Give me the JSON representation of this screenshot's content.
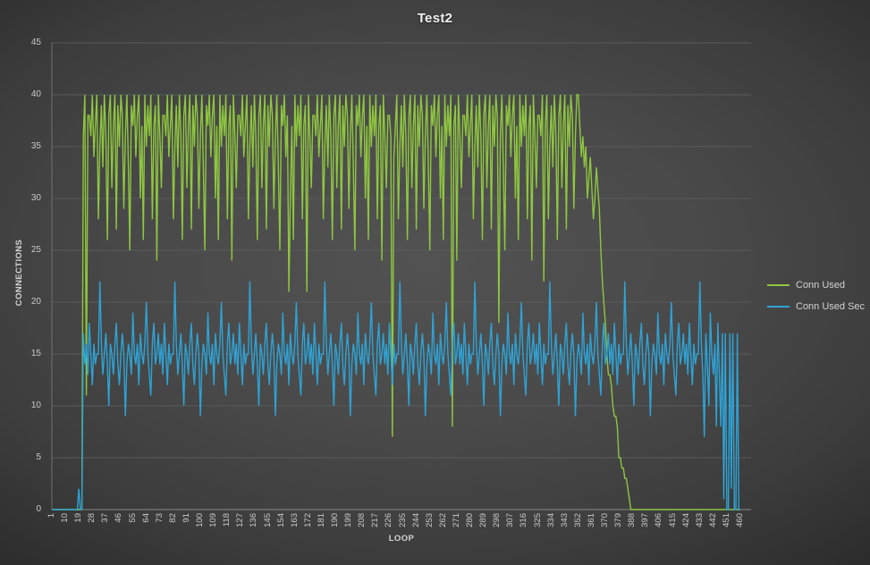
{
  "colors": {
    "background_center": "#525252",
    "background_corner": "#2b2b2b",
    "gridline": "#5a5a5a",
    "x_axis_line": "#888888",
    "y_axis_line": "#6f6f6f",
    "tick_text": "#c9c9c9",
    "axis_title_text": "#d4d4d4",
    "title_text": "#f0f0f0",
    "legend_text": "#d2d2d2",
    "series_green": "#8fc640",
    "series_blue": "#2ea3d6"
  },
  "chart_data": {
    "type": "line",
    "title": "Test2",
    "xlabel": "LOOP",
    "ylabel": "CONNECTIONS",
    "ylim": [
      0,
      45
    ],
    "xlim": [
      1,
      467
    ],
    "grid": true,
    "legend_position": "right-middle",
    "x_start": 1,
    "x_step": 1,
    "yticks": [
      0,
      5,
      10,
      15,
      20,
      25,
      30,
      35,
      40,
      45
    ],
    "xticks": [
      1,
      10,
      19,
      28,
      37,
      46,
      55,
      64,
      73,
      82,
      91,
      100,
      109,
      118,
      127,
      136,
      145,
      154,
      163,
      172,
      181,
      190,
      199,
      208,
      217,
      226,
      235,
      244,
      253,
      262,
      271,
      280,
      289,
      298,
      307,
      316,
      325,
      334,
      343,
      352,
      361,
      370,
      379,
      388,
      397,
      406,
      415,
      424,
      433,
      442,
      451,
      460
    ],
    "series": [
      {
        "name": "Conn Used",
        "color": "#8fc640",
        "values": [
          0,
          0,
          0,
          0,
          0,
          0,
          0,
          0,
          0,
          0,
          0,
          0,
          0,
          0,
          0,
          0,
          0,
          0,
          0,
          0,
          0,
          36,
          40,
          11,
          38,
          38,
          36,
          40,
          34,
          37,
          40,
          28,
          35,
          39,
          33,
          40,
          36,
          26,
          38,
          40,
          31,
          37,
          40,
          27,
          39,
          35,
          40,
          38,
          29,
          36,
          40,
          33,
          25,
          39,
          37,
          40,
          34,
          38,
          40,
          30,
          37,
          26,
          40,
          35,
          39,
          36,
          40,
          28,
          37,
          39,
          24,
          40,
          36,
          31,
          38,
          38,
          36,
          40,
          34,
          37,
          40,
          28,
          35,
          39,
          33,
          40,
          36,
          26,
          38,
          40,
          31,
          37,
          40,
          27,
          39,
          35,
          40,
          38,
          29,
          36,
          40,
          33,
          25,
          39,
          37,
          40,
          34,
          38,
          40,
          30,
          37,
          26,
          40,
          35,
          39,
          36,
          40,
          28,
          37,
          39,
          24,
          40,
          36,
          31,
          38,
          38,
          36,
          40,
          34,
          37,
          40,
          28,
          35,
          39,
          33,
          40,
          36,
          26,
          38,
          40,
          31,
          37,
          40,
          27,
          39,
          35,
          40,
          38,
          29,
          36,
          40,
          33,
          25,
          39,
          37,
          40,
          34,
          38,
          21,
          30,
          37,
          26,
          40,
          35,
          39,
          36,
          40,
          28,
          37,
          39,
          21,
          40,
          36,
          31,
          38,
          38,
          36,
          40,
          34,
          37,
          40,
          28,
          35,
          39,
          33,
          40,
          36,
          26,
          38,
          40,
          31,
          37,
          40,
          27,
          39,
          35,
          40,
          38,
          29,
          36,
          40,
          33,
          25,
          39,
          37,
          40,
          34,
          38,
          40,
          30,
          37,
          26,
          40,
          35,
          39,
          36,
          40,
          28,
          37,
          39,
          24,
          40,
          36,
          31,
          38,
          38,
          36,
          7,
          34,
          37,
          40,
          28,
          35,
          39,
          33,
          40,
          36,
          26,
          38,
          40,
          31,
          37,
          40,
          27,
          39,
          35,
          40,
          38,
          29,
          36,
          40,
          33,
          25,
          39,
          37,
          40,
          34,
          38,
          40,
          30,
          37,
          26,
          40,
          35,
          39,
          36,
          40,
          8,
          37,
          39,
          24,
          40,
          36,
          31,
          38,
          38,
          36,
          40,
          34,
          37,
          40,
          28,
          35,
          39,
          33,
          40,
          36,
          26,
          38,
          40,
          31,
          37,
          40,
          27,
          39,
          35,
          40,
          38,
          18,
          36,
          40,
          33,
          25,
          39,
          37,
          40,
          34,
          38,
          40,
          30,
          37,
          26,
          40,
          35,
          39,
          36,
          40,
          28,
          37,
          39,
          24,
          40,
          36,
          31,
          38,
          38,
          36,
          40,
          22,
          37,
          40,
          28,
          35,
          39,
          33,
          40,
          36,
          26,
          38,
          40,
          31,
          37,
          40,
          27,
          39,
          35,
          40,
          38,
          29,
          36,
          40,
          40,
          37,
          34,
          36,
          33,
          35,
          30,
          32,
          34,
          31,
          28,
          30,
          33,
          31,
          29,
          25,
          22,
          20,
          18,
          15,
          13,
          13,
          12,
          10,
          9,
          9,
          8,
          5,
          5,
          4,
          4,
          3,
          3,
          2,
          1,
          0,
          0,
          0,
          0,
          0,
          0,
          0,
          0,
          0,
          0,
          0,
          0,
          0,
          0,
          0,
          0,
          0,
          0,
          0,
          0,
          0,
          0,
          0,
          0,
          0,
          0,
          0,
          0,
          0,
          0,
          0,
          0,
          0,
          0,
          0,
          0,
          0,
          0,
          0,
          0,
          0,
          0,
          0,
          0,
          0,
          0,
          0,
          0,
          0,
          0,
          0,
          0,
          0,
          0,
          0,
          0,
          0,
          0,
          0,
          0,
          0,
          0,
          0,
          0,
          0,
          0,
          0,
          0,
          0,
          0,
          0,
          0,
          0,
          0
        ]
      },
      {
        "name": "Conn Used Sec",
        "color": "#2ea3d6",
        "values": [
          0,
          0,
          0,
          0,
          0,
          0,
          0,
          0,
          0,
          0,
          0,
          0,
          0,
          0,
          0,
          0,
          0,
          0,
          2,
          0,
          0,
          17,
          14,
          16,
          13,
          18,
          15,
          12,
          16,
          14,
          15,
          15,
          22,
          16,
          13,
          15,
          17,
          14,
          10,
          16,
          15,
          13,
          16,
          18,
          14,
          12,
          15,
          17,
          15,
          9,
          14,
          16,
          15,
          13,
          19,
          15,
          14,
          16,
          12,
          17,
          15,
          14,
          16,
          20,
          15,
          13,
          11,
          16,
          18,
          14,
          15,
          17,
          14,
          16,
          13,
          18,
          15,
          12,
          16,
          14,
          15,
          15,
          22,
          16,
          13,
          15,
          17,
          14,
          10,
          16,
          15,
          13,
          16,
          18,
          14,
          12,
          15,
          17,
          15,
          9,
          14,
          16,
          15,
          13,
          19,
          15,
          14,
          16,
          12,
          17,
          15,
          14,
          16,
          20,
          15,
          13,
          11,
          16,
          18,
          14,
          15,
          17,
          14,
          16,
          13,
          18,
          15,
          12,
          16,
          14,
          15,
          15,
          22,
          16,
          13,
          15,
          17,
          14,
          10,
          16,
          15,
          13,
          16,
          18,
          14,
          12,
          15,
          17,
          15,
          9,
          14,
          16,
          15,
          13,
          19,
          15,
          14,
          16,
          12,
          17,
          15,
          14,
          16,
          20,
          15,
          13,
          11,
          16,
          18,
          14,
          15,
          17,
          14,
          16,
          13,
          18,
          15,
          12,
          16,
          14,
          15,
          15,
          22,
          16,
          13,
          15,
          17,
          14,
          10,
          16,
          15,
          13,
          16,
          18,
          14,
          12,
          15,
          17,
          15,
          9,
          14,
          16,
          15,
          13,
          19,
          15,
          14,
          16,
          12,
          17,
          15,
          14,
          16,
          20,
          15,
          13,
          11,
          16,
          18,
          14,
          15,
          17,
          14,
          16,
          13,
          18,
          15,
          12,
          16,
          14,
          15,
          15,
          22,
          16,
          13,
          15,
          17,
          14,
          10,
          16,
          15,
          13,
          16,
          18,
          14,
          12,
          15,
          17,
          15,
          9,
          14,
          16,
          15,
          13,
          19,
          15,
          14,
          16,
          12,
          17,
          15,
          14,
          16,
          20,
          15,
          13,
          11,
          16,
          18,
          14,
          15,
          17,
          14,
          16,
          13,
          18,
          15,
          12,
          16,
          14,
          15,
          15,
          22,
          16,
          13,
          15,
          17,
          14,
          10,
          16,
          15,
          13,
          16,
          18,
          14,
          12,
          15,
          17,
          15,
          9,
          14,
          16,
          15,
          13,
          19,
          15,
          14,
          16,
          12,
          17,
          15,
          14,
          16,
          20,
          15,
          13,
          11,
          16,
          18,
          14,
          15,
          17,
          14,
          16,
          13,
          18,
          15,
          12,
          16,
          14,
          15,
          15,
          22,
          16,
          13,
          15,
          17,
          14,
          10,
          16,
          15,
          13,
          16,
          18,
          14,
          12,
          15,
          17,
          15,
          9,
          14,
          16,
          15,
          13,
          19,
          15,
          14,
          16,
          12,
          17,
          15,
          14,
          16,
          20,
          15,
          13,
          11,
          16,
          18,
          14,
          15,
          17,
          14,
          16,
          13,
          18,
          15,
          12,
          16,
          14,
          15,
          15,
          22,
          16,
          13,
          15,
          17,
          14,
          10,
          16,
          15,
          13,
          16,
          18,
          14,
          12,
          15,
          17,
          15,
          9,
          14,
          16,
          15,
          13,
          19,
          15,
          14,
          16,
          12,
          17,
          15,
          14,
          16,
          20,
          15,
          13,
          11,
          16,
          18,
          14,
          15,
          17,
          14,
          16,
          13,
          18,
          15,
          12,
          16,
          14,
          15,
          15,
          22,
          16,
          13,
          7,
          17,
          14,
          10,
          19,
          15,
          13,
          16,
          8,
          18,
          13,
          8,
          17,
          1,
          17,
          0,
          0,
          17,
          2,
          17,
          0,
          0,
          17,
          0,
          0
        ]
      }
    ]
  }
}
